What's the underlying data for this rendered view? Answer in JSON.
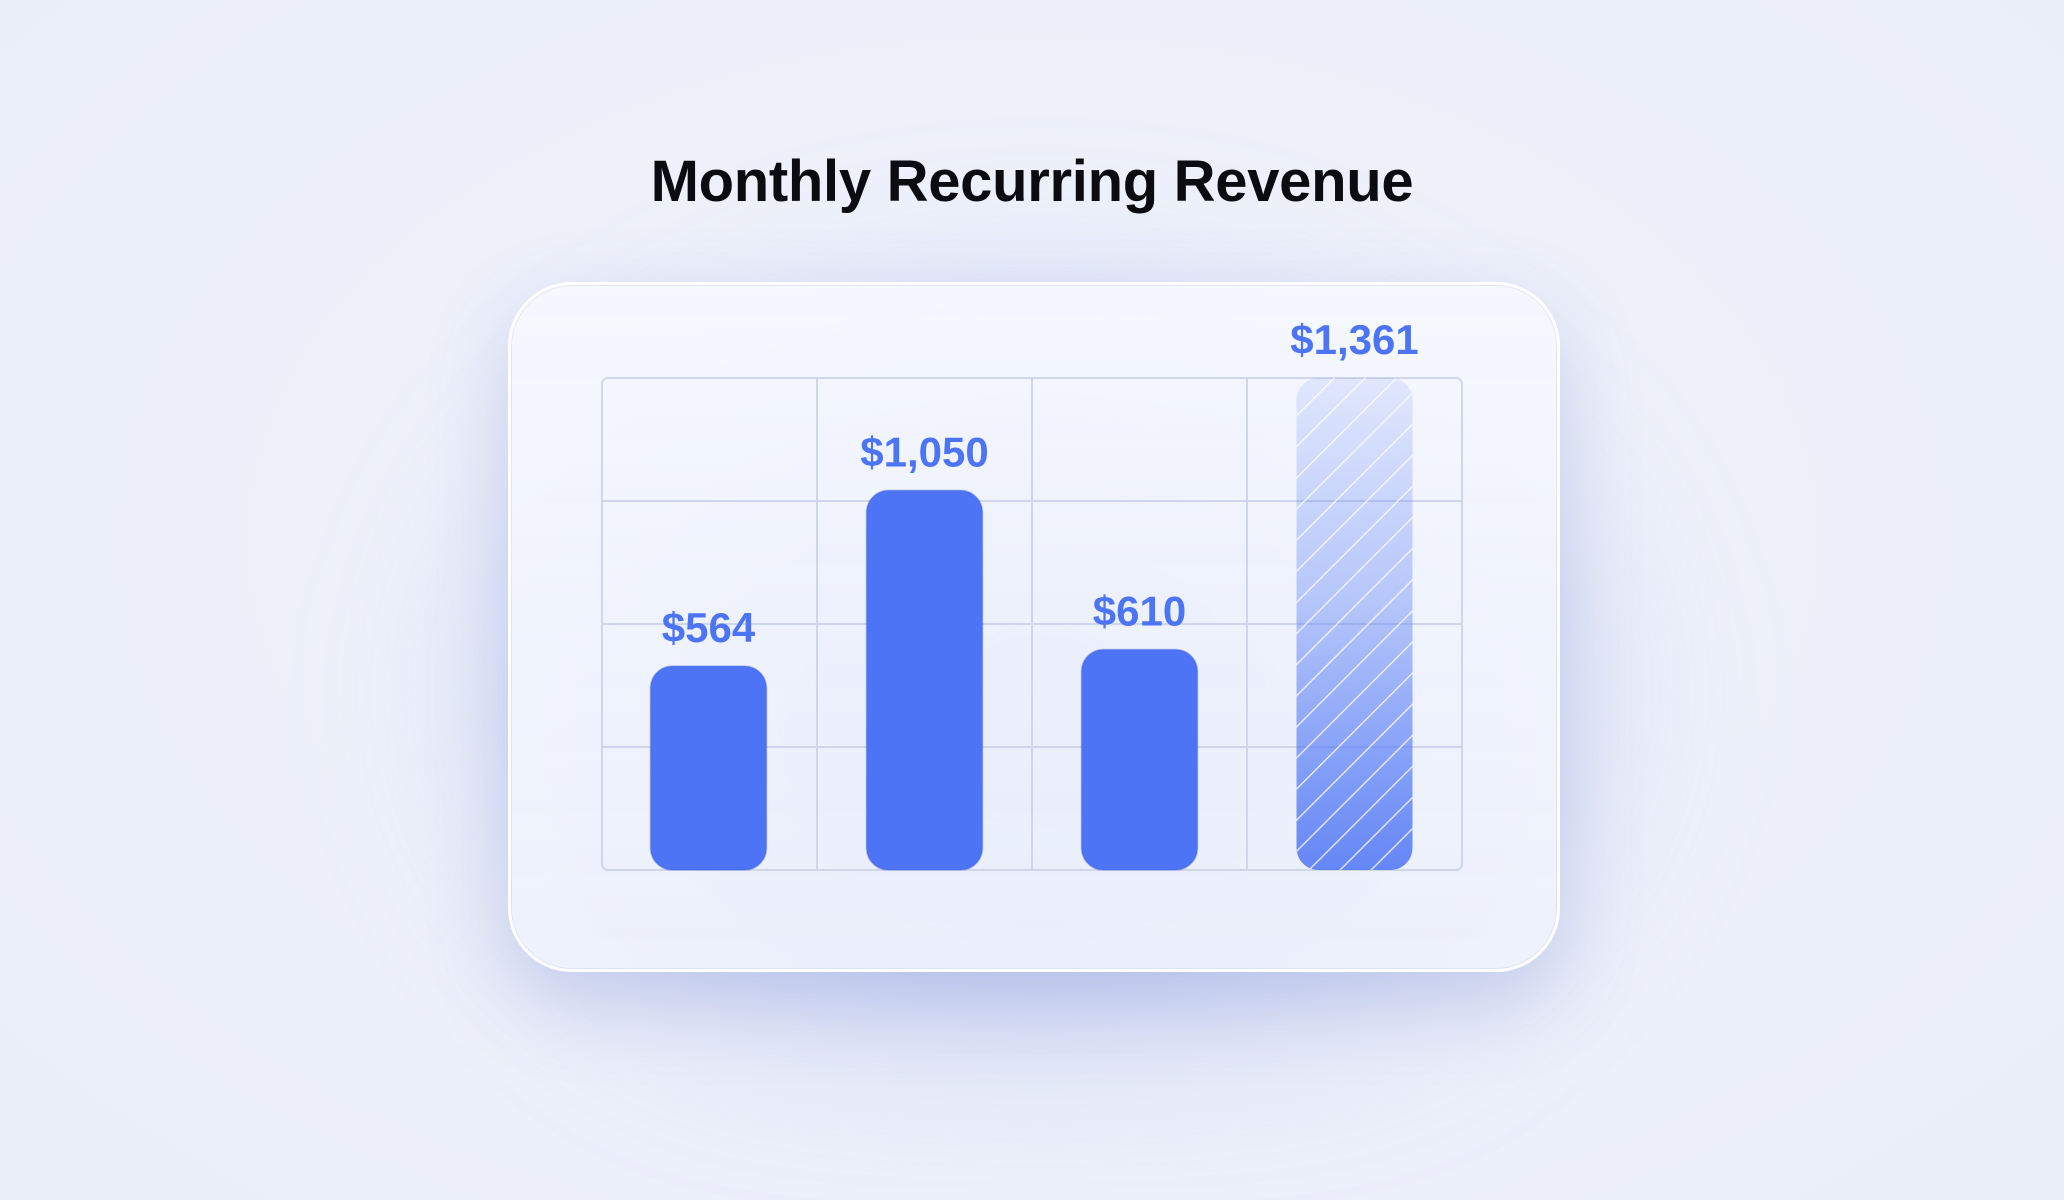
{
  "title": "Monthly Recurring Revenue",
  "colors": {
    "bar": "#4d74f5",
    "label": "#4d74f5",
    "grid": "#cfd6ea",
    "title": "#0b0c12"
  },
  "chart_data": {
    "type": "bar",
    "title": "Monthly Recurring Revenue",
    "xlabel": "",
    "ylabel": "",
    "categories": [
      "",
      "",
      "",
      ""
    ],
    "values": [
      564,
      1050,
      610,
      1361
    ],
    "value_labels": [
      "$564",
      "$1,050",
      "$610",
      "$1,361"
    ],
    "hatched": [
      false,
      false,
      false,
      true
    ],
    "ylim": [
      0,
      1361
    ],
    "grid": true,
    "legend": "none"
  }
}
